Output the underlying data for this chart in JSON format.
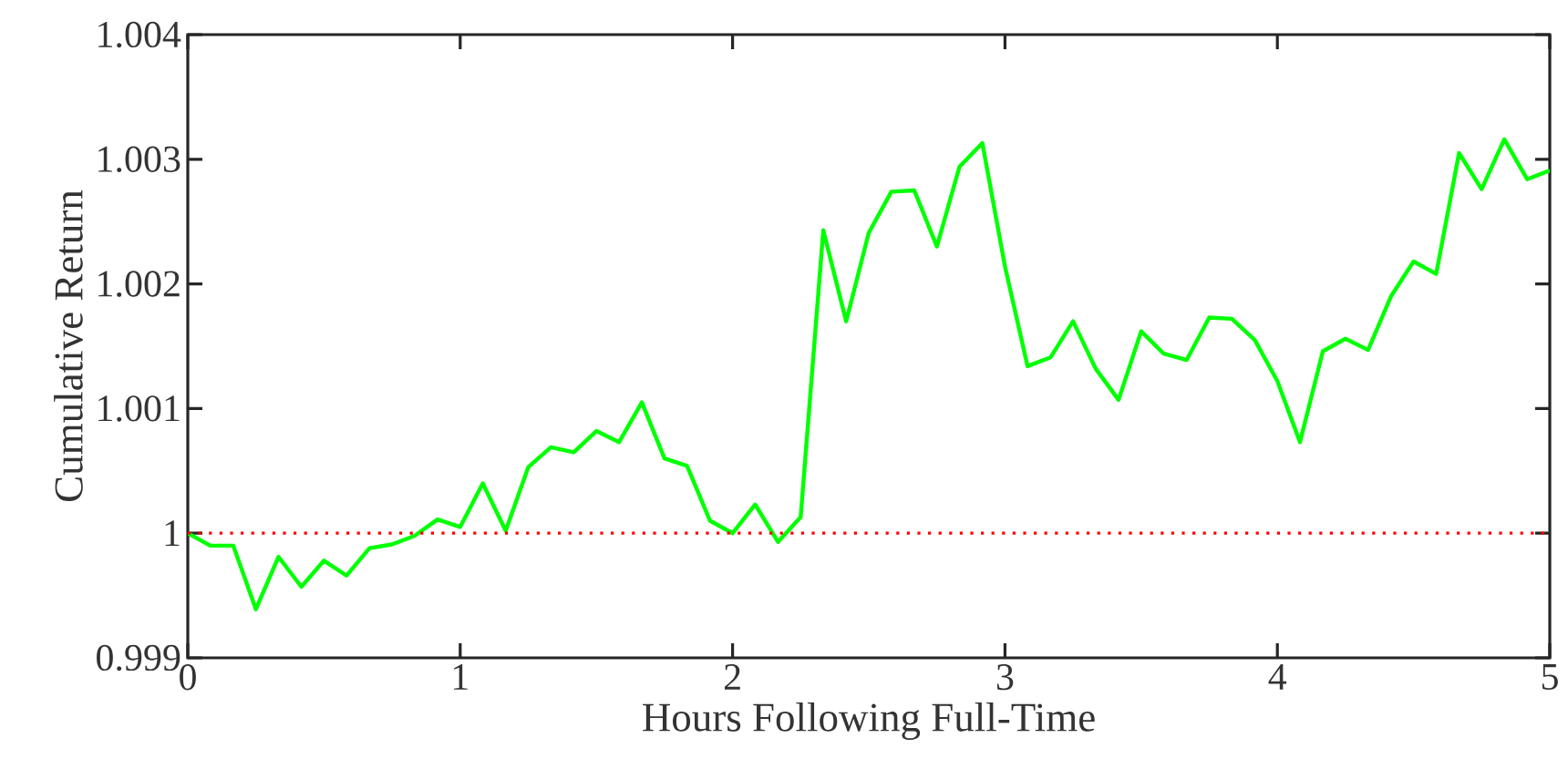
{
  "chart_data": {
    "type": "line",
    "xlabel": "Hours Following Full-Time",
    "ylabel": "Cumulative Return",
    "x": [
      0,
      0.083,
      0.167,
      0.25,
      0.333,
      0.417,
      0.5,
      0.583,
      0.667,
      0.75,
      0.833,
      0.917,
      1,
      1.083,
      1.167,
      1.25,
      1.333,
      1.417,
      1.5,
      1.583,
      1.667,
      1.75,
      1.833,
      1.917,
      2,
      2.083,
      2.167,
      2.25,
      2.333,
      2.417,
      2.5,
      2.583,
      2.667,
      2.75,
      2.833,
      2.917,
      3,
      3.083,
      3.167,
      3.25,
      3.333,
      3.417,
      3.5,
      3.583,
      3.667,
      3.75,
      3.833,
      3.917,
      4,
      4.083,
      4.167,
      4.25,
      4.333,
      4.417,
      4.5,
      4.583,
      4.667,
      4.75,
      4.833,
      4.917,
      5
    ],
    "values": [
      1.0,
      0.9999,
      0.9999,
      0.99939,
      0.99981,
      0.99957,
      0.99978,
      0.99966,
      0.99988,
      0.99991,
      0.99998,
      1.00011,
      1.00005,
      1.0004,
      1.00002,
      1.00053,
      1.00069,
      1.00065,
      1.00082,
      1.00073,
      1.00105,
      1.0006,
      1.00054,
      1.0001,
      1.0,
      1.00023,
      0.99993,
      1.00013,
      1.00243,
      1.0017,
      1.00241,
      1.00274,
      1.00275,
      1.0023,
      1.00294,
      1.00313,
      1.00214,
      1.00134,
      1.00141,
      1.0017,
      1.00132,
      1.00107,
      1.00162,
      1.00144,
      1.00139,
      1.00173,
      1.00172,
      1.00155,
      1.00122,
      1.00073,
      1.00146,
      1.00156,
      1.00147,
      1.0019,
      1.00218,
      1.00208,
      1.00305,
      1.00276,
      1.00316,
      1.00284,
      1.00291
    ],
    "color": "#00ff00",
    "xlim": [
      0,
      5
    ],
    "xticks": [
      0,
      1,
      2,
      3,
      4,
      5
    ],
    "ylim": [
      0.999,
      1.004
    ],
    "yticks": [
      0.999,
      1,
      1.001,
      1.002,
      1.003,
      1.004
    ],
    "ref_lines": [
      {
        "axis": "y",
        "value": 1,
        "color": "#ff0000",
        "line_style": "dotted"
      }
    ]
  }
}
